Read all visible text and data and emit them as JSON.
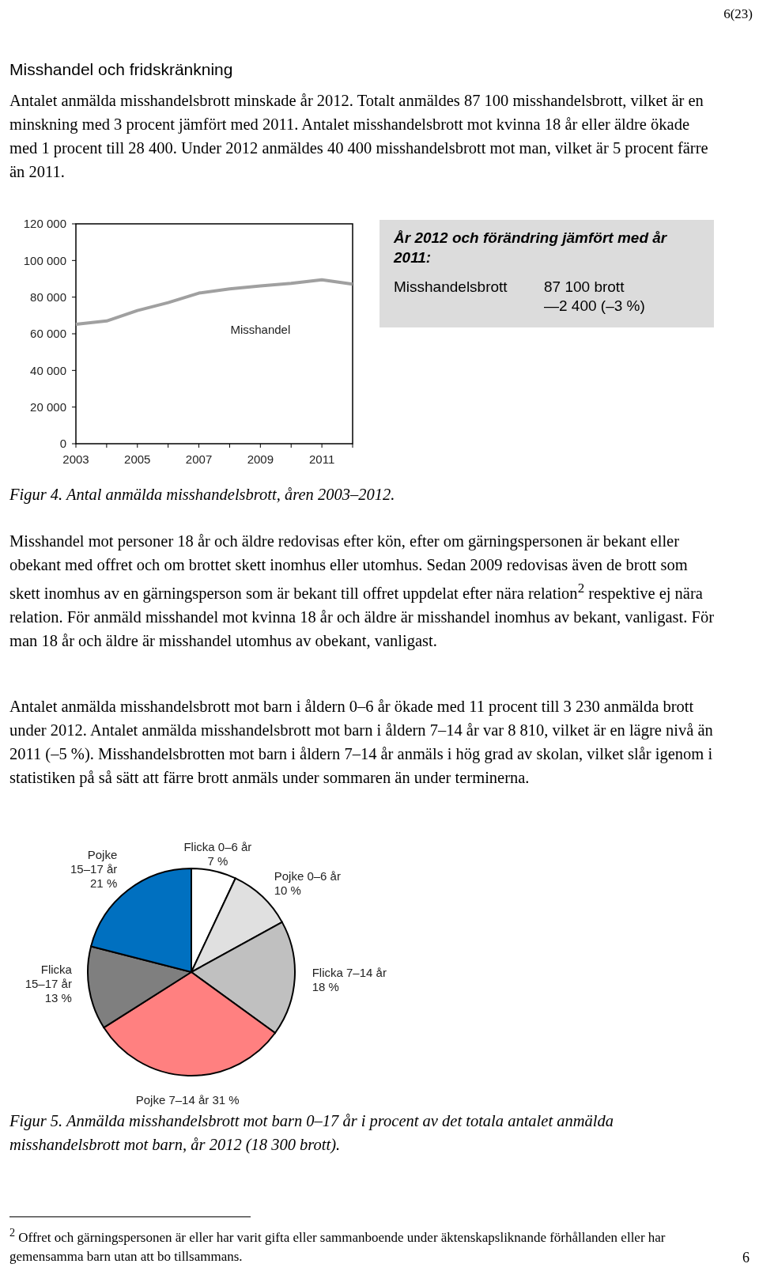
{
  "chart_data": [
    {
      "type": "line",
      "title": "Misshandel och fridskränkning",
      "annotations": [
        "6(23)",
        "Antalet anmälda misshandelsbrott minskade år 2012. Totalt anmäldes 87 100 misshandelsbrott, vilket är en minskning med 3 procent jämfört med 2011. Antalet misshandelsbrott mot kvinna 18 år eller äldre ökade med 1 procent till 28 400. Under 2012 anmäldes 40 400 misshandelsbrott mot man, vilket är 5 procent färre än 2011.",
        "Figur 4. Antal anmälda misshandelsbrott, åren 2003–2012."
      ],
      "x": [
        2003,
        2004,
        2005,
        2006,
        2007,
        2008,
        2009,
        2010,
        2011,
        2012
      ],
      "series": [
        {
          "name": "Misshandel",
          "color": "#a0a0a0",
          "values": [
            65200,
            67000,
            72700,
            77000,
            82200,
            84500,
            86100,
            87500,
            89500,
            87100
          ]
        }
      ],
      "xlim": [
        2003,
        2012
      ],
      "xticks": [
        2003,
        {
          "value": 2004,
          "label": null
        },
        2005,
        {
          "value": 2006,
          "label": null
        },
        2007,
        {
          "value": 2008,
          "label": null
        },
        2009,
        {
          "value": 2010,
          "label": null
        },
        2011,
        {
          "value": 2012,
          "label": null
        }
      ],
      "ylim": [
        0,
        120000
      ],
      "yticks": [
        {
          "value": 0,
          "label": "0"
        },
        {
          "value": 20000,
          "label": "20 000"
        },
        {
          "value": 40000,
          "label": "40 000"
        },
        {
          "value": 60000,
          "label": "60 000"
        },
        {
          "value": 80000,
          "label": "80 000"
        },
        {
          "value": 100000,
          "label": "100 000"
        },
        {
          "value": 120000,
          "label": "120 000"
        }
      ],
      "grid": false,
      "marker": "none",
      "line_style": "solid"
    },
    {
      "type": "other",
      "title": "År 2012 och förändring jämfört med år 2011:",
      "annotations": [
        "Misshandelsbrott",
        "87 100 brott",
        "—2 400 (–3 %)"
      ]
    },
    {
      "type": "pie",
      "annotations": [
        "Misshandel mot personer 18 år och äldre redovisas efter kön, efter om gärningspersonen är bekant eller obekant med offret och om brottet skett inomhus eller utomhus. Sedan 2009 redovisas även de brott som skett inomhus av en gärningsperson som är bekant till offret uppdelat efter nära relation$^{2}$ respektive ej nära relation. För anmäld misshandel mot kvinna 18 år och äldre är misshandel inomhus av bekant, vanligast. För man 18 år och äldre är misshandel utomhus av obekant, vanligast.",
        "Antalet anmälda misshandelsbrott mot barn i åldern 0–6 år ökade med 11 procent till 3 230 anmälda brott under 2012. Antalet anmälda misshandelsbrott mot barn i åldern 7–14 år var 8 810, vilket är en lägre nivå än 2011 (–5 %). Misshandelsbrotten mot barn i åldern 7–14 år anmäls i hög grad av skolan, vilket slår igenom i statistiken på så sätt att färre brott anmäls under sommaren än under terminerna.",
        "Figur 5. Anmälda misshandelsbrott mot barn 0–17 år i procent av det totala antalet anmälda misshandelsbrott mot barn, år 2012 (18 300 brott).",
        "$^{2}$ Offret och gärningspersonen är eller har varit gifta eller sammanboende under äktenskapsliknande förhållanden eller har gemensamma barn utan att bo tillsammans.",
        "6"
      ],
      "categories": [
        "Flicka 0–6 år",
        "Pojke 0–6 år",
        "Flicka 7–14 år",
        "Pojke 7–14 år",
        "Flicka 15–17 år",
        "Pojke 15–17 år"
      ],
      "values": [
        7,
        10,
        18,
        31,
        13,
        21
      ],
      "value_labels": [
        "7 %",
        "10 %",
        "18 %",
        "31 %",
        "13 %",
        "21 %"
      ],
      "colors": [
        "#ffffff",
        "#e0e0e0",
        "#c0c0c0",
        "#ff8080",
        "#7f7f7f",
        "#0070c0"
      ]
    }
  ]
}
